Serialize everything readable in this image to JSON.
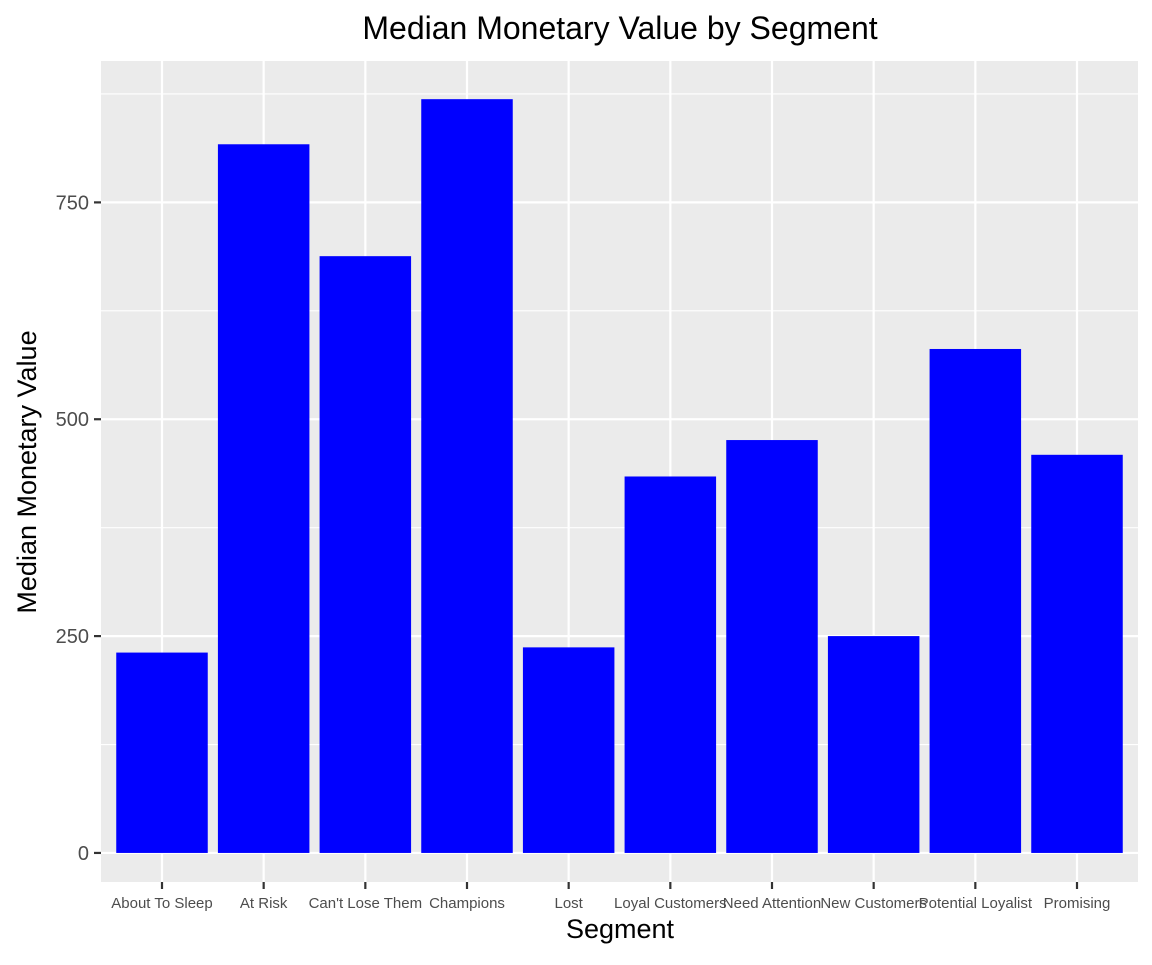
{
  "chart_data": {
    "type": "bar",
    "title": "Median Monetary Value by Segment",
    "xlabel": "Segment",
    "ylabel": "Median Monetary Value",
    "categories": [
      "About To Sleep",
      "At Risk",
      "Can't Lose Them",
      "Champions",
      "Lost",
      "Loyal Customers",
      "Need Attention",
      "New Customers",
      "Potential Loyalist",
      "Promising"
    ],
    "values": [
      231,
      817,
      688,
      869,
      237,
      434,
      476,
      250,
      581,
      459
    ],
    "ylim": [
      -33.5,
      913
    ],
    "yticks": [
      0,
      250,
      500,
      750
    ],
    "ytick_labels": [
      "0",
      "250",
      "500",
      "750"
    ],
    "bar_color": "#0000ff",
    "panel_background": "#ebebeb",
    "grid_color": "#ffffff",
    "grid": true,
    "legend": "none"
  }
}
